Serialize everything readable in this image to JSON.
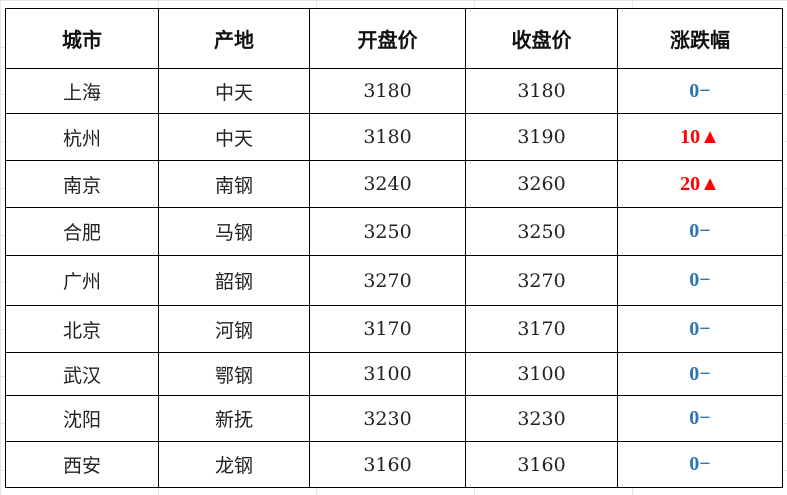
{
  "colors": {
    "up": "#ff0000",
    "flat": "#2e75b6"
  },
  "headers": [
    "城市",
    "产地",
    "开盘价",
    "收盘价",
    "涨跌幅"
  ],
  "rows": [
    {
      "city": "上海",
      "origin": "中天",
      "open": "3180",
      "close": "3180",
      "change": "0−",
      "dir": "flat"
    },
    {
      "city": "杭州",
      "origin": "中天",
      "open": "3180",
      "close": "3190",
      "change": "10▲",
      "dir": "up"
    },
    {
      "city": "南京",
      "origin": "南钢",
      "open": "3240",
      "close": "3260",
      "change": "20▲",
      "dir": "up"
    },
    {
      "city": "合肥",
      "origin": "马钢",
      "open": "3250",
      "close": "3250",
      "change": "0−",
      "dir": "flat"
    },
    {
      "city": "广州",
      "origin": "韶钢",
      "open": "3270",
      "close": "3270",
      "change": "0−",
      "dir": "flat"
    },
    {
      "city": "北京",
      "origin": "河钢",
      "open": "3170",
      "close": "3170",
      "change": "0−",
      "dir": "flat"
    },
    {
      "city": "武汉",
      "origin": "鄂钢",
      "open": "3100",
      "close": "3100",
      "change": "0−",
      "dir": "flat"
    },
    {
      "city": "沈阳",
      "origin": "新抚",
      "open": "3230",
      "close": "3230",
      "change": "0−",
      "dir": "flat"
    },
    {
      "city": "西安",
      "origin": "龙钢",
      "open": "3160",
      "close": "3160",
      "change": "0−",
      "dir": "flat"
    }
  ]
}
